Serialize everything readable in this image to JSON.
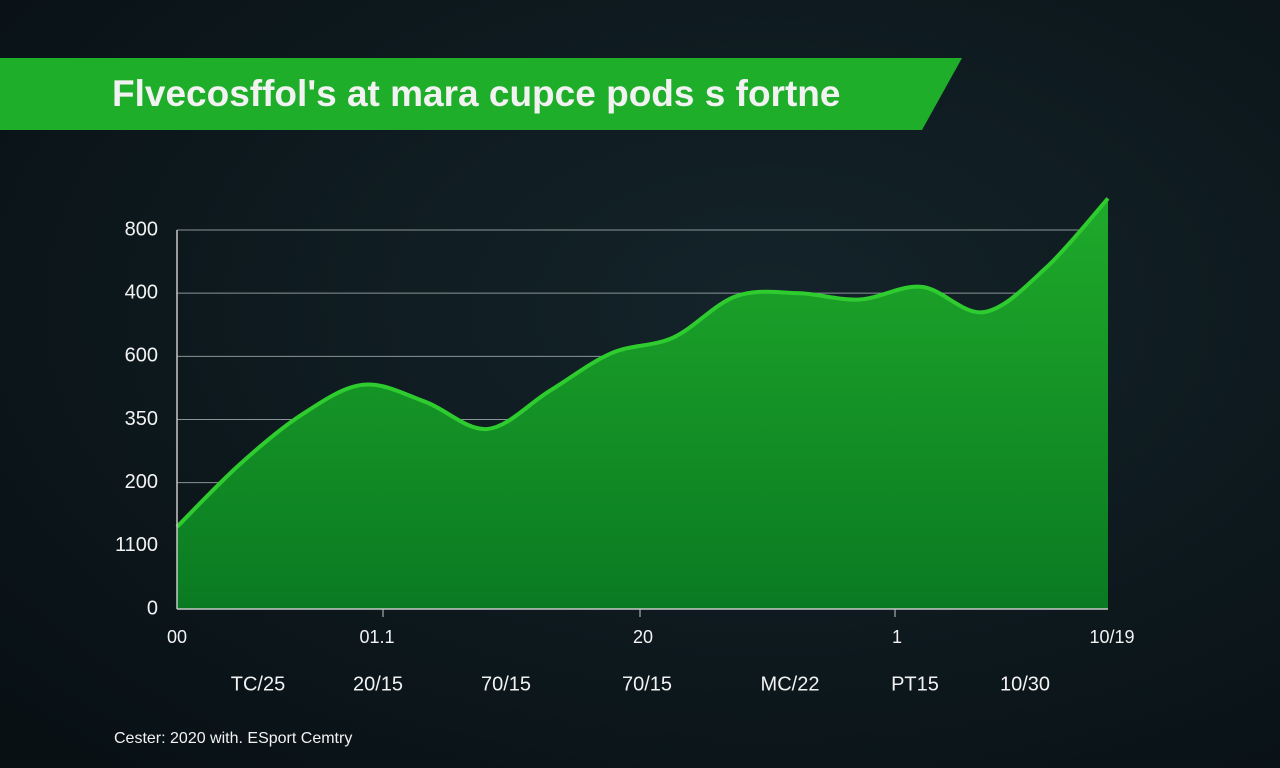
{
  "chart_data": {
    "type": "area",
    "title": "Flvecosffol's at mara cupce pods s fortne",
    "footer": "Cester: 2020 with. ESport Cemtry",
    "categories": [
      null,
      null,
      null,
      null,
      null,
      null,
      null,
      null,
      null,
      null,
      null,
      null,
      null,
      null,
      null,
      null
    ],
    "series": [
      {
        "color": "#2ecc2e",
        "values": [
          1.3,
          2.28,
          3.07,
          3.55,
          3.28,
          2.85,
          3.45,
          4.05,
          4.3,
          4.95,
          5.0,
          4.9,
          5.1,
          4.7,
          5.4,
          6.5
        ]
      }
    ],
    "ylim": [
      0,
      6
    ],
    "yticks": [
      {
        "value": 0,
        "label": "0"
      },
      {
        "value": 1,
        "label": "1100"
      },
      {
        "value": 2,
        "label": "200"
      },
      {
        "value": 3,
        "label": "350"
      },
      {
        "value": 4,
        "label": "600"
      },
      {
        "value": 5,
        "label": "400"
      },
      {
        "value": 6,
        "label": "800"
      }
    ],
    "x_tick_labels": [
      "00",
      "01.1",
      "20",
      "1",
      "10/19"
    ],
    "x_labels": [
      "TC/25",
      "20/15",
      "70/15",
      "70/15",
      "MC/22",
      "PT15",
      "10/30"
    ],
    "grid": true
  }
}
